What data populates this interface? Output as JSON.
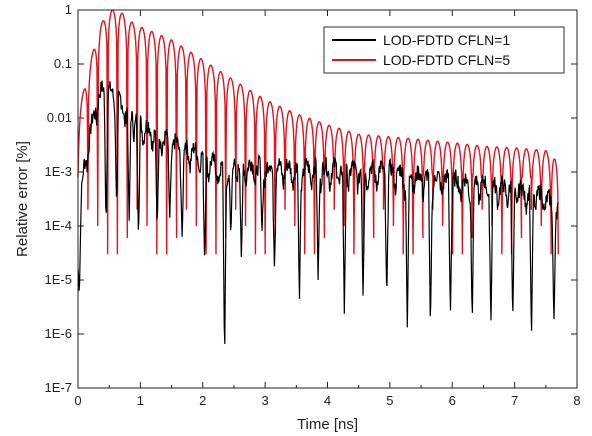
{
  "chart_data": {
    "type": "line",
    "title": "",
    "xlabel": "Time [ns]",
    "ylabel": "Relative error [%]",
    "xlim": [
      0,
      8
    ],
    "ylim": [
      1e-07,
      1
    ],
    "yscale": "log",
    "xticks": [
      0,
      1,
      2,
      3,
      4,
      5,
      6,
      7,
      8
    ],
    "xtick_labels": [
      "0",
      "1",
      "2",
      "3",
      "4",
      "5",
      "6",
      "7",
      "8"
    ],
    "yticks": [
      1,
      0.1,
      0.01,
      0.001,
      0.0001,
      1e-05,
      1e-06,
      1e-07
    ],
    "ytick_labels": [
      "1",
      "0.1",
      "0.01",
      "1E-3",
      "1E-4",
      "1E-5",
      "1E-6",
      "1E-7"
    ],
    "grid": false,
    "legend_position": "top-right",
    "series": [
      {
        "name": "LOD-FDTD CFLN=1",
        "color": "#000000",
        "envelope": {
          "x": [
            0.0,
            0.1,
            0.2,
            0.3,
            0.4,
            0.5,
            0.6,
            0.8,
            1.0,
            1.2,
            1.5,
            2.0,
            2.3,
            2.5,
            3.0,
            3.5,
            4.0,
            4.5,
            5.0,
            5.5,
            6.0,
            6.5,
            7.0,
            7.3,
            7.5,
            7.7
          ],
          "y": [
            0.0001,
            0.002,
            0.008,
            0.03,
            0.05,
            0.045,
            0.035,
            0.02,
            0.012,
            0.008,
            0.005,
            0.003,
            0.0015,
            0.002,
            0.0018,
            0.0017,
            0.0017,
            0.0016,
            0.0015,
            0.0012,
            0.001,
            0.00085,
            0.0007,
            0.0006,
            0.0005,
            0.00025
          ]
        },
        "nulls_x": [
          0.02,
          0.45,
          0.62,
          0.82,
          0.97,
          1.27,
          1.47,
          1.67,
          2.03,
          2.35,
          2.45,
          2.62,
          2.95,
          3.15,
          3.55,
          3.85,
          4.27,
          4.57,
          4.95,
          5.28,
          5.65,
          5.97,
          6.32,
          6.62,
          6.97,
          7.27,
          7.63
        ],
        "nulls_y": [
          5e-06,
          0.0001,
          0.0002,
          0.0001,
          5e-05,
          8e-05,
          0.00012,
          5e-05,
          2e-05,
          3e-07,
          6e-05,
          2e-05,
          7e-05,
          1.5e-05,
          4e-06,
          1e-05,
          2e-06,
          4e-06,
          4e-06,
          1e-06,
          1e-06,
          2e-06,
          1.5e-06,
          1.2e-06,
          1.5e-06,
          7e-07,
          1.5e-06
        ]
      },
      {
        "name": "LOD-FDTD CFLN=5",
        "color": "#e8101a",
        "envelope": {
          "x": [
            0.0,
            0.15,
            0.35,
            0.5,
            0.65,
            0.9,
            1.5,
            2.0,
            2.5,
            3.0,
            3.5,
            4.0,
            4.5,
            5.0,
            5.5,
            6.0,
            6.5,
            7.0,
            7.5,
            7.7
          ],
          "y": [
            0.01,
            0.07,
            0.5,
            1.0,
            1.0,
            0.55,
            0.28,
            0.12,
            0.05,
            0.022,
            0.012,
            0.0075,
            0.005,
            0.0045,
            0.004,
            0.0035,
            0.003,
            0.0028,
            0.0025,
            0.0015
          ]
        },
        "first_null_x": 0.0,
        "null_spacing": 0.158,
        "nulls_y": [
          0.0008,
          0.0002,
          0.0001,
          3e-05,
          6e-05
        ]
      }
    ]
  }
}
